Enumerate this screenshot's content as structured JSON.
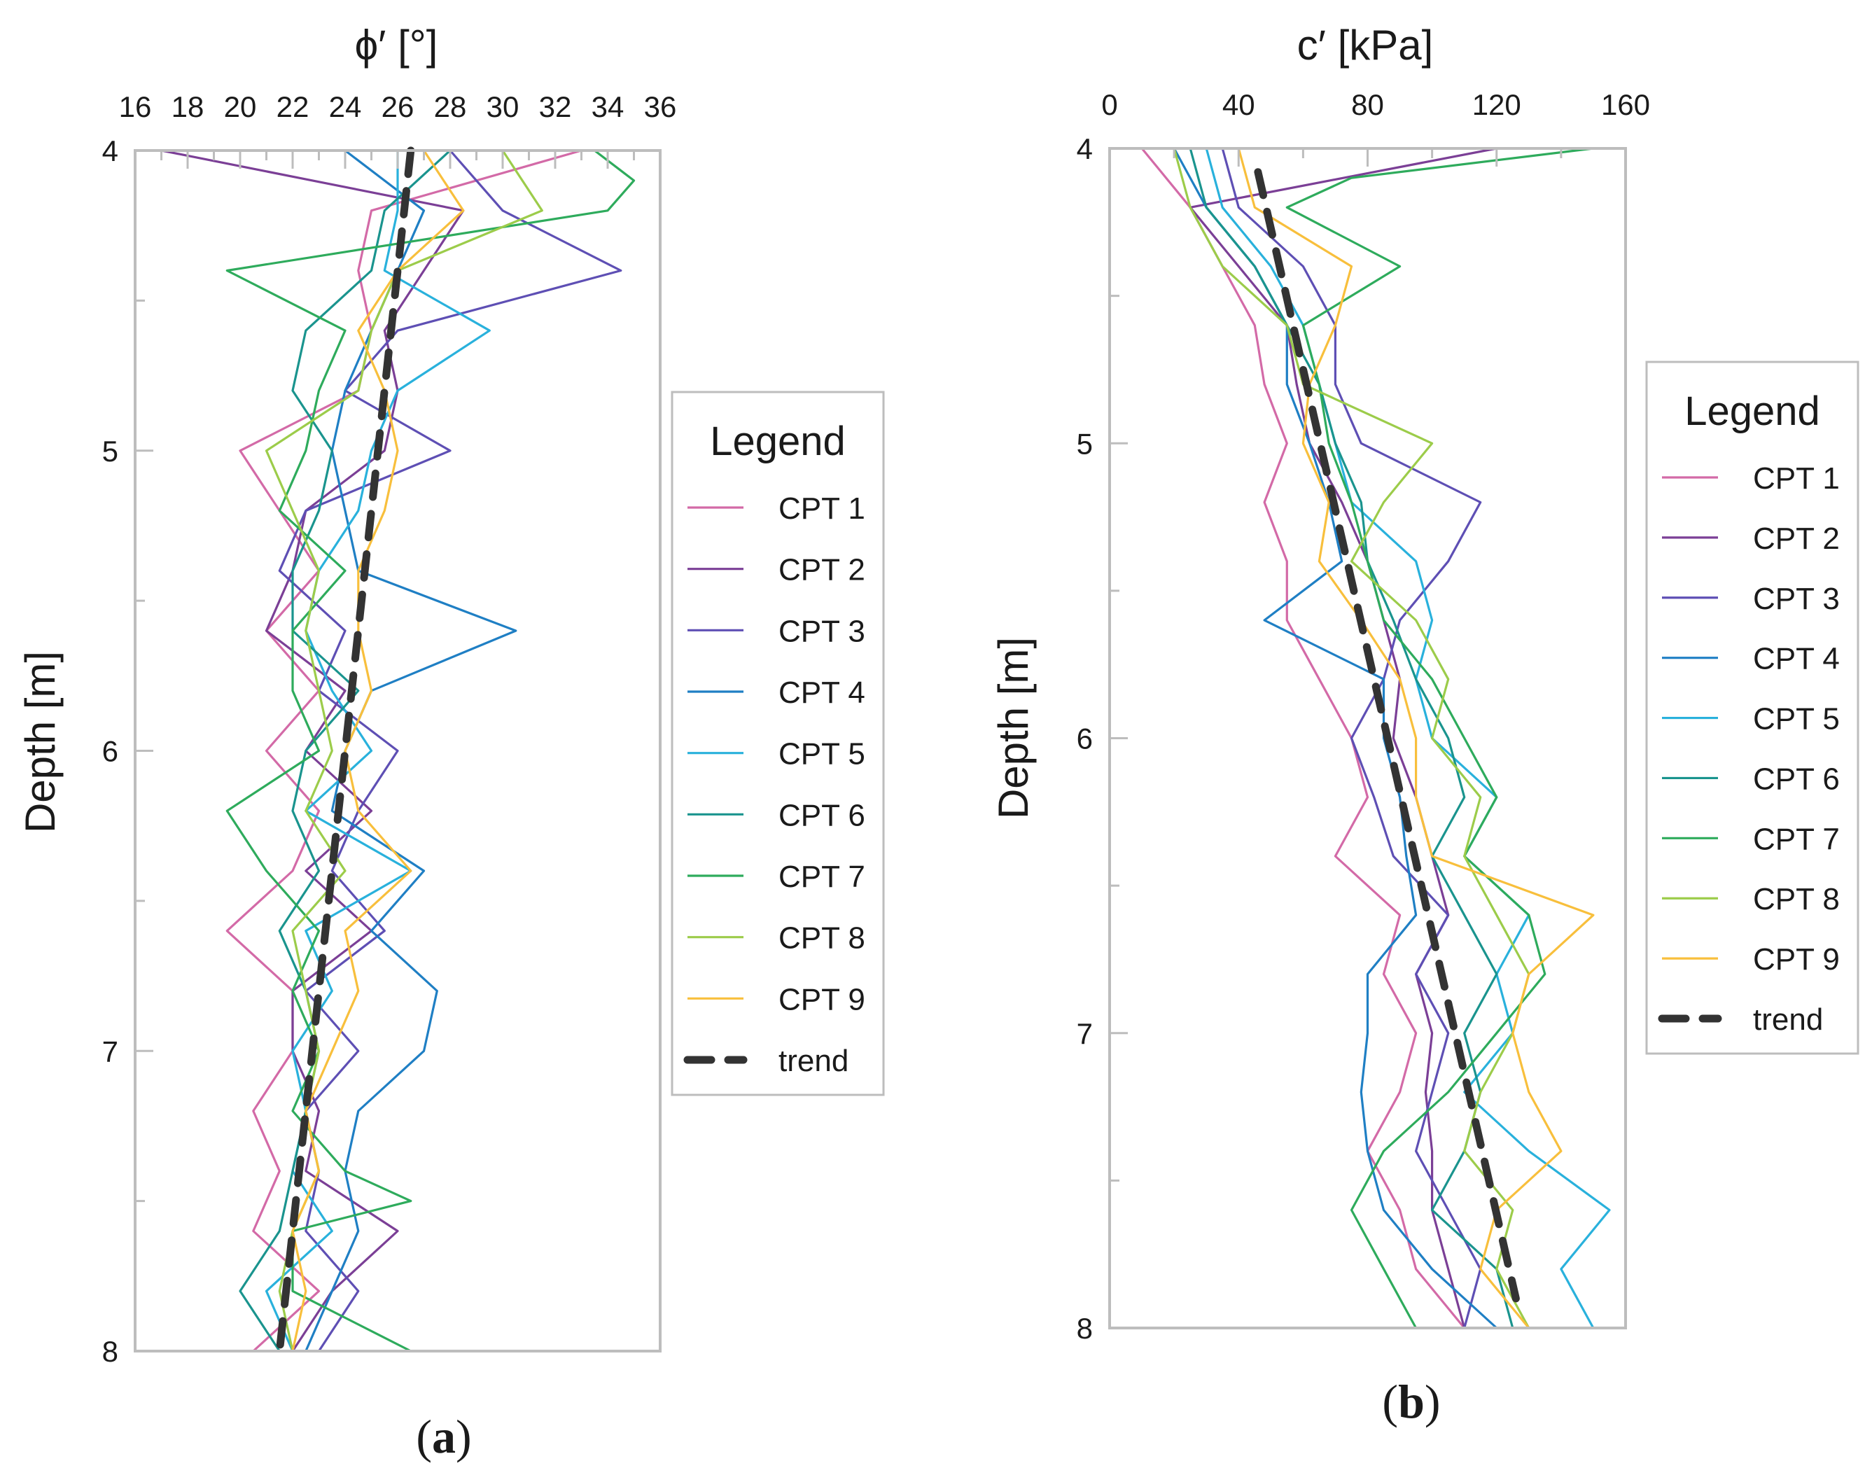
{
  "figure": {
    "panels": [
      {
        "id": "a",
        "caption_open": "(",
        "caption_letter": "a",
        "caption_close": ")",
        "legend": {
          "title": "Legend"
        }
      },
      {
        "id": "b",
        "caption_open": "(",
        "caption_letter": "b",
        "caption_close": ")",
        "legend": {
          "title": "Legend"
        }
      }
    ]
  },
  "colors": {
    "axis": "#bdbdbd",
    "trend": "#333333",
    "CPT 1": "#d36aa7",
    "CPT 2": "#7b3f96",
    "CPT 3": "#5e4fb4",
    "CPT 4": "#1f7fc4",
    "CPT 5": "#29b1dc",
    "CPT 6": "#1a948e",
    "CPT 7": "#2eab5c",
    "CPT 8": "#9ccc4a",
    "CPT 9": "#f8bf3c"
  },
  "chart_data": [
    {
      "type": "line",
      "panel": "a",
      "title": "",
      "xlabel": "ϕ′ [°]",
      "ylabel": "Depth [m]",
      "xlim": [
        16,
        36
      ],
      "ylim": [
        4,
        8
      ],
      "y_inverted": true,
      "x_axis_position": "top",
      "xticks": [
        16,
        18,
        20,
        22,
        24,
        26,
        28,
        30,
        32,
        34,
        36
      ],
      "yticks": [
        4,
        5,
        6,
        7,
        8
      ],
      "legend_position": "right",
      "series": [
        {
          "name": "CPT 1",
          "depth": [
            4.0,
            4.2,
            4.4,
            4.6,
            4.8,
            5.0,
            5.2,
            5.4,
            5.6,
            5.8,
            6.0,
            6.2,
            6.4,
            6.6,
            6.8,
            7.0,
            7.2,
            7.4,
            7.6,
            7.8,
            8.0
          ],
          "values": [
            33,
            25,
            24.5,
            25,
            24.5,
            20,
            21.5,
            23,
            21,
            23,
            21,
            23,
            22,
            19.5,
            22,
            22,
            20.5,
            21.5,
            20.5,
            23,
            20.5
          ]
        },
        {
          "name": "CPT 2",
          "depth": [
            4.0,
            4.2,
            4.4,
            4.6,
            4.8,
            5.0,
            5.2,
            5.4,
            5.6,
            5.8,
            6.0,
            6.2,
            6.4,
            6.6,
            6.8,
            7.0,
            7.2,
            7.4,
            7.6,
            7.8,
            8.0
          ],
          "values": [
            17,
            28.5,
            27,
            25.5,
            26,
            25.5,
            22.5,
            22,
            21,
            24,
            22.5,
            25,
            22.5,
            25,
            22,
            22,
            23,
            22.5,
            26,
            23.5,
            22
          ]
        },
        {
          "name": "CPT 3",
          "depth": [
            4.0,
            4.2,
            4.4,
            4.6,
            4.8,
            5.0,
            5.2,
            5.4,
            5.6,
            5.8,
            6.0,
            6.2,
            6.4,
            6.6,
            6.8,
            7.0,
            7.2,
            7.4,
            7.6,
            7.8,
            8.0
          ],
          "values": [
            28,
            30,
            34.5,
            26,
            24,
            28,
            22.5,
            21.5,
            24,
            23,
            26,
            24.5,
            23.5,
            25.5,
            22.5,
            24.5,
            22.5,
            23,
            22.5,
            24.5,
            23
          ]
        },
        {
          "name": "CPT 4",
          "depth": [
            4.0,
            4.2,
            4.4,
            4.6,
            4.8,
            5.0,
            5.2,
            5.4,
            5.6,
            5.8,
            6.0,
            6.2,
            6.4,
            6.6,
            6.8,
            7.0,
            7.2,
            7.4,
            7.6,
            7.8,
            8.0
          ],
          "values": [
            24,
            27,
            26,
            25,
            24,
            23.5,
            24,
            24.5,
            30.5,
            25,
            24,
            23.5,
            27,
            25,
            27.5,
            27,
            24.5,
            24,
            24.5,
            23.5,
            22.5
          ]
        },
        {
          "name": "CPT 5",
          "depth": [
            4.0,
            4.2,
            4.4,
            4.6,
            4.8,
            5.0,
            5.2,
            5.4,
            5.6,
            5.8,
            6.0,
            6.2,
            6.4,
            6.6,
            6.8,
            7.0,
            7.2,
            7.4,
            7.6,
            7.8,
            8.0
          ],
          "values": [
            26,
            26,
            25.5,
            29.5,
            26,
            25,
            24.5,
            23,
            22.5,
            23.5,
            25,
            22.5,
            26.5,
            22.5,
            23.5,
            22,
            22.5,
            22,
            23.5,
            21,
            22
          ]
        },
        {
          "name": "CPT 6",
          "depth": [
            4.0,
            4.2,
            4.4,
            4.6,
            4.8,
            5.0,
            5.2,
            5.4,
            5.6,
            5.8,
            6.0,
            6.2,
            6.4,
            6.6,
            6.8,
            7.0,
            7.2,
            7.4,
            7.6,
            7.8,
            8.0
          ],
          "values": [
            28,
            25.5,
            25,
            22.5,
            22,
            23.5,
            23,
            22,
            22,
            24.5,
            22.5,
            22,
            23,
            21.5,
            22.5,
            23,
            22.5,
            22,
            21.5,
            20,
            21.5
          ]
        },
        {
          "name": "CPT 7",
          "depth": [
            4.0,
            4.1,
            4.2,
            4.4,
            4.6,
            4.8,
            5.0,
            5.2,
            5.4,
            5.6,
            5.8,
            6.0,
            6.2,
            6.4,
            6.6,
            6.8,
            7.0,
            7.2,
            7.4,
            7.5,
            7.6,
            7.8,
            8.0
          ],
          "values": [
            33.5,
            35,
            34,
            19.5,
            24,
            23,
            22.5,
            21.5,
            24,
            22,
            22,
            23,
            19.5,
            21,
            23,
            22,
            23,
            22,
            24,
            26.5,
            22,
            22,
            26.5
          ]
        },
        {
          "name": "CPT 8",
          "depth": [
            4.0,
            4.2,
            4.4,
            4.6,
            4.8,
            5.0,
            5.2,
            5.4,
            5.6,
            5.8,
            6.0,
            6.2,
            6.4,
            6.6,
            6.8,
            7.0,
            7.2,
            7.4,
            7.6,
            7.8,
            8.0
          ],
          "values": [
            30,
            31.5,
            26,
            25,
            24.5,
            21,
            22,
            23,
            22.5,
            23,
            23.5,
            22.5,
            24,
            22,
            22.5,
            23,
            22.5,
            23,
            22,
            21.5,
            22
          ]
        },
        {
          "name": "CPT 9",
          "depth": [
            4.0,
            4.2,
            4.4,
            4.6,
            4.8,
            5.0,
            5.2,
            5.4,
            5.6,
            5.8,
            6.0,
            6.2,
            6.4,
            6.6,
            6.8,
            7.0,
            7.2,
            7.4,
            7.6,
            7.8,
            8.0
          ],
          "values": [
            27,
            28.5,
            26,
            24.5,
            25.5,
            26,
            25.5,
            24.5,
            24.5,
            25,
            24,
            24.5,
            26.5,
            24,
            24.5,
            23.5,
            22.5,
            23,
            22,
            22.5,
            22
          ]
        }
      ],
      "trend": {
        "name": "trend",
        "depth": [
          4.0,
          8.0
        ],
        "values": [
          26.5,
          21.5
        ]
      }
    },
    {
      "type": "line",
      "panel": "b",
      "title": "",
      "xlabel": "c′ [kPa]",
      "ylabel": "Depth [m]",
      "xlim": [
        0,
        160
      ],
      "ylim": [
        4,
        8
      ],
      "y_inverted": true,
      "x_axis_position": "top",
      "xticks": [
        0,
        40,
        80,
        120,
        160
      ],
      "yticks": [
        4,
        5,
        6,
        7,
        8
      ],
      "legend_position": "right",
      "series": [
        {
          "name": "CPT 1",
          "depth": [
            4.0,
            4.2,
            4.4,
            4.6,
            4.8,
            5.0,
            5.2,
            5.4,
            5.6,
            5.8,
            6.0,
            6.2,
            6.4,
            6.6,
            6.8,
            7.0,
            7.2,
            7.4,
            7.6,
            7.8,
            8.0
          ],
          "values": [
            10,
            25,
            35,
            45,
            48,
            55,
            48,
            55,
            55,
            65,
            75,
            80,
            70,
            90,
            85,
            95,
            90,
            80,
            90,
            95,
            110
          ]
        },
        {
          "name": "CPT 2",
          "depth": [
            4.0,
            4.2,
            4.4,
            4.6,
            4.8,
            5.0,
            5.2,
            5.4,
            5.6,
            5.8,
            6.0,
            6.2,
            6.4,
            6.6,
            6.8,
            7.0,
            7.2,
            7.4,
            7.6,
            7.8,
            8.0
          ],
          "values": [
            120,
            25,
            40,
            55,
            58,
            62,
            72,
            80,
            85,
            90,
            88,
            95,
            100,
            105,
            95,
            100,
            98,
            100,
            100,
            105,
            110
          ]
        },
        {
          "name": "CPT 3",
          "depth": [
            4.0,
            4.2,
            4.4,
            4.6,
            4.8,
            5.0,
            5.2,
            5.4,
            5.6,
            5.8,
            6.0,
            6.2,
            6.4,
            6.6,
            6.8,
            7.0,
            7.2,
            7.4,
            7.6,
            7.8,
            8.0
          ],
          "values": [
            35,
            40,
            60,
            70,
            70,
            78,
            115,
            105,
            90,
            85,
            75,
            82,
            88,
            105,
            95,
            105,
            100,
            95,
            105,
            115,
            110
          ]
        },
        {
          "name": "CPT 4",
          "depth": [
            4.0,
            4.2,
            4.4,
            4.6,
            4.8,
            5.0,
            5.2,
            5.4,
            5.6,
            5.8,
            6.0,
            6.2,
            6.4,
            6.6,
            6.8,
            7.0,
            7.2,
            7.4,
            7.6,
            7.8,
            8.0
          ],
          "values": [
            20,
            30,
            45,
            55,
            55,
            62,
            68,
            72,
            48,
            85,
            85,
            90,
            92,
            95,
            80,
            80,
            78,
            80,
            85,
            100,
            120
          ]
        },
        {
          "name": "CPT 5",
          "depth": [
            4.0,
            4.2,
            4.4,
            4.6,
            4.8,
            5.0,
            5.2,
            5.4,
            5.6,
            5.8,
            6.0,
            6.2,
            6.4,
            6.6,
            6.8,
            7.0,
            7.2,
            7.4,
            7.6,
            7.8,
            8.0
          ],
          "values": [
            30,
            35,
            50,
            60,
            65,
            70,
            75,
            95,
            100,
            95,
            100,
            120,
            110,
            130,
            120,
            125,
            110,
            130,
            155,
            140,
            150
          ]
        },
        {
          "name": "CPT 6",
          "depth": [
            4.0,
            4.2,
            4.4,
            4.6,
            4.8,
            5.0,
            5.2,
            5.4,
            5.6,
            5.8,
            6.0,
            6.2,
            6.4,
            6.6,
            6.8,
            7.0,
            7.2,
            7.4,
            7.6,
            7.8,
            8.0
          ],
          "values": [
            25,
            30,
            45,
            55,
            65,
            70,
            78,
            80,
            88,
            95,
            105,
            110,
            100,
            110,
            120,
            110,
            115,
            110,
            100,
            120,
            125
          ]
        },
        {
          "name": "CPT 7",
          "depth": [
            4.0,
            4.1,
            4.2,
            4.4,
            4.6,
            4.8,
            5.0,
            5.2,
            5.4,
            5.6,
            5.8,
            6.0,
            6.2,
            6.4,
            6.6,
            6.8,
            7.0,
            7.2,
            7.4,
            7.6,
            7.8,
            8.0
          ],
          "values": [
            150,
            75,
            55,
            90,
            60,
            65,
            68,
            75,
            80,
            85,
            100,
            110,
            120,
            110,
            130,
            135,
            120,
            105,
            85,
            75,
            85,
            95
          ]
        },
        {
          "name": "CPT 8",
          "depth": [
            4.0,
            4.2,
            4.4,
            4.6,
            4.8,
            5.0,
            5.2,
            5.4,
            5.6,
            5.8,
            6.0,
            6.2,
            6.4,
            6.6,
            6.8,
            7.0,
            7.2,
            7.4,
            7.6,
            7.8,
            8.0
          ],
          "values": [
            20,
            25,
            35,
            55,
            60,
            100,
            85,
            75,
            95,
            105,
            100,
            115,
            110,
            120,
            130,
            125,
            115,
            110,
            125,
            120,
            130
          ]
        },
        {
          "name": "CPT 9",
          "depth": [
            4.0,
            4.2,
            4.4,
            4.6,
            4.8,
            5.0,
            5.2,
            5.4,
            5.6,
            5.8,
            6.0,
            6.2,
            6.4,
            6.6,
            6.8,
            7.0,
            7.2,
            7.4,
            7.6,
            7.8,
            8.0
          ],
          "values": [
            40,
            45,
            75,
            70,
            62,
            60,
            68,
            65,
            78,
            90,
            95,
            95,
            100,
            150,
            130,
            125,
            130,
            140,
            120,
            115,
            130
          ]
        }
      ],
      "trend": {
        "name": "trend",
        "depth": [
          4.08,
          7.9
        ],
        "values": [
          46,
          126
        ]
      }
    }
  ]
}
